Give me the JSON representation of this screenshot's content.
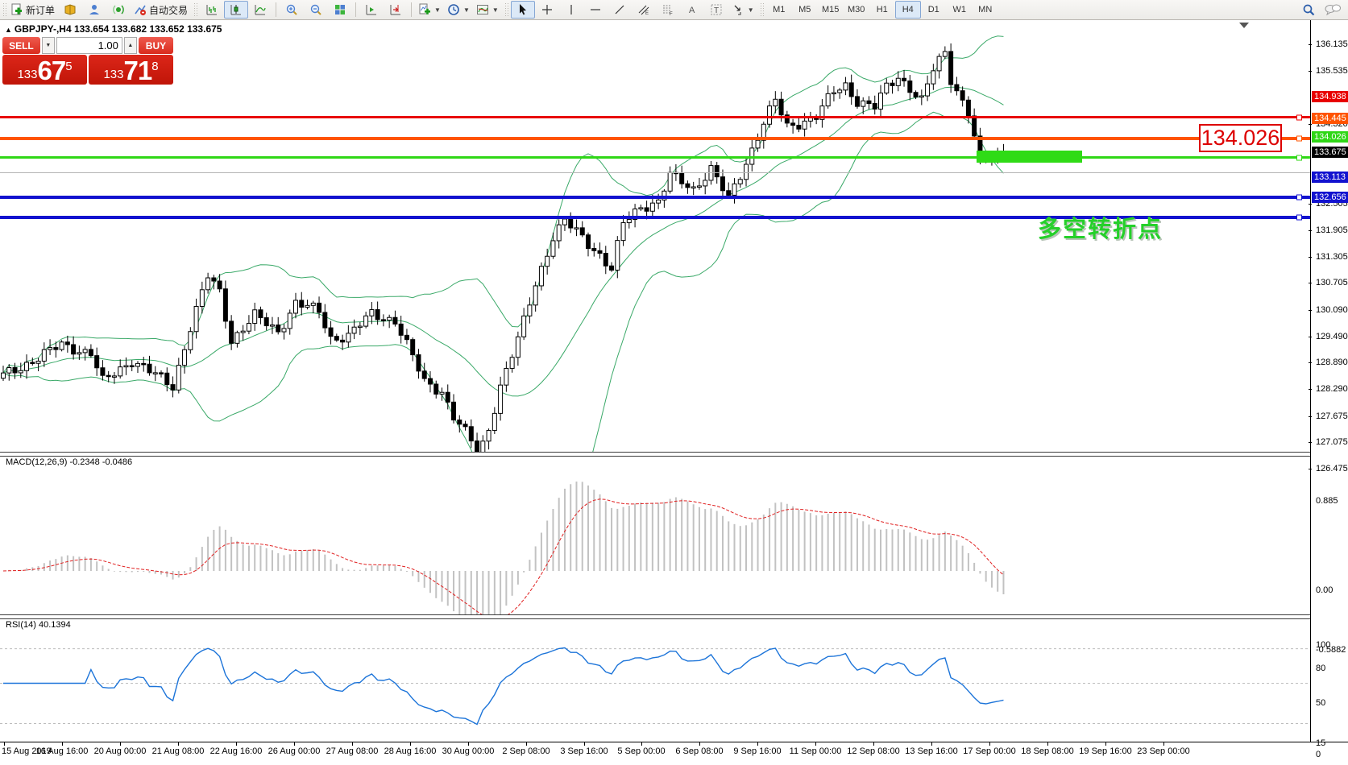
{
  "toolbar": {
    "new_order_label": "新订单",
    "autotrade_label": "自动交易",
    "timeframes": [
      "M1",
      "M5",
      "M15",
      "M30",
      "H1",
      "H4",
      "D1",
      "W1",
      "MN"
    ],
    "active_timeframe": "H4",
    "caret_glyph": "▼"
  },
  "window": {
    "title_toggle_glyph": "▲",
    "chart_title": "GBPJPY-,H4  133.654 133.682 133.652 133.675"
  },
  "one_click": {
    "sell_label": "SELL",
    "buy_label": "BUY",
    "volume": "1.00",
    "spin_down_glyph": "▼",
    "spin_up_glyph": "▲",
    "sell_price": {
      "prefix": "133",
      "big": "67",
      "sup": "5"
    },
    "buy_price": {
      "prefix": "133",
      "big": "71",
      "sup": "8"
    }
  },
  "annotations": {
    "price_box": "134.026",
    "turning_point": "多空转折点"
  },
  "hlines": [
    {
      "price": 134.938,
      "color": "#e80000",
      "thickness": 3,
      "badge": true
    },
    {
      "price": 134.445,
      "color": "#ff5400",
      "thickness": 4,
      "badge": true
    },
    {
      "price": 134.026,
      "color": "#2fd716",
      "thickness": 3,
      "badge": true
    },
    {
      "price": 133.675,
      "color": "#b4b4b4",
      "thickness": 1,
      "badge": false
    },
    {
      "price": 133.113,
      "color": "#1212cf",
      "thickness": 4,
      "badge": true
    },
    {
      "price": 132.656,
      "color": "#1212cf",
      "thickness": 4,
      "badge": true
    }
  ],
  "price_axis": {
    "plain_ticks": [
      136.135,
      135.535,
      134.32,
      132.505,
      131.905,
      131.305,
      130.705,
      130.09,
      129.49,
      128.89,
      128.29,
      127.675,
      127.075,
      126.475
    ],
    "badges": [
      {
        "value": "134.938",
        "color": "#e80000",
        "text": "#ffffff"
      },
      {
        "value": "134.445",
        "color": "#ff5400",
        "text": "#ffffff"
      },
      {
        "value": "134.026",
        "color": "#2fd716",
        "text": "#ffffff"
      },
      {
        "value": "133.675",
        "color": "#000000",
        "text": "#ffffff"
      },
      {
        "value": "133.113",
        "color": "#1212cf",
        "text": "#ffffff"
      },
      {
        "value": "132.656",
        "color": "#1212cf",
        "text": "#ffffff"
      }
    ]
  },
  "macd_pane": {
    "label": "MACD(12,26,9) -0.2348 -0.0486",
    "ticks": [
      0.885,
      0.0,
      -0.5882
    ]
  },
  "rsi_pane": {
    "label": "RSI(14) 40.1394",
    "ticks": [
      100,
      80,
      50,
      15,
      0
    ]
  },
  "time_axis": [
    "15 Aug 2019",
    "16 Aug 16:00",
    "20 Aug 00:00",
    "21 Aug 08:00",
    "22 Aug 16:00",
    "26 Aug 00:00",
    "27 Aug 08:00",
    "28 Aug 16:00",
    "30 Aug 00:00",
    "2 Sep 08:00",
    "3 Sep 16:00",
    "5 Sep 00:00",
    "6 Sep 08:00",
    "9 Sep 16:00",
    "11 Sep 00:00",
    "12 Sep 08:00",
    "13 Sep 16:00",
    "17 Sep 00:00",
    "18 Sep 08:00",
    "19 Sep 16:00",
    "23 Sep 00:00"
  ],
  "chart_data": {
    "type": "candlestick",
    "symbol": "GBPJPY-",
    "timeframe": "H4",
    "ohlc_display": {
      "open": 133.654,
      "high": 133.682,
      "low": 133.652,
      "close": 133.675
    },
    "price_range": [
      126.475,
      136.135
    ],
    "bars": 172,
    "close_anchors": [
      [
        0,
        128.6
      ],
      [
        6,
        129.0
      ],
      [
        10,
        129.3
      ],
      [
        15,
        129.1
      ],
      [
        17,
        128.45
      ],
      [
        22,
        128.95
      ],
      [
        29,
        128.35
      ],
      [
        32,
        129.7
      ],
      [
        35,
        130.85
      ],
      [
        37,
        130.5
      ],
      [
        39,
        129.4
      ],
      [
        43,
        129.95
      ],
      [
        47,
        129.6
      ],
      [
        50,
        130.25
      ],
      [
        54,
        130.05
      ],
      [
        56,
        129.45
      ],
      [
        59,
        129.5
      ],
      [
        63,
        130.0
      ],
      [
        67,
        129.85
      ],
      [
        72,
        128.45
      ],
      [
        75,
        128.25
      ],
      [
        77,
        127.65
      ],
      [
        80,
        127.1
      ],
      [
        81,
        126.7
      ],
      [
        83,
        127.4
      ],
      [
        85,
        128.35
      ],
      [
        88,
        129.4
      ],
      [
        91,
        130.7
      ],
      [
        94,
        131.75
      ],
      [
        96,
        132.1
      ],
      [
        99,
        131.75
      ],
      [
        102,
        131.35
      ],
      [
        104,
        131.0
      ],
      [
        106,
        132.05
      ],
      [
        109,
        132.45
      ],
      [
        112,
        132.55
      ],
      [
        114,
        133.15
      ],
      [
        118,
        132.85
      ],
      [
        121,
        133.3
      ],
      [
        124,
        132.6
      ],
      [
        127,
        133.45
      ],
      [
        130,
        134.35
      ],
      [
        132,
        134.85
      ],
      [
        134,
        134.25
      ],
      [
        137,
        134.4
      ],
      [
        139,
        134.5
      ],
      [
        142,
        135.05
      ],
      [
        144,
        135.2
      ],
      [
        146,
        134.85
      ],
      [
        149,
        134.7
      ],
      [
        151,
        135.15
      ],
      [
        153,
        135.4
      ],
      [
        155,
        135.15
      ],
      [
        157,
        134.85
      ],
      [
        159,
        135.55
      ],
      [
        161,
        135.95
      ],
      [
        162,
        135.35
      ],
      [
        164,
        134.85
      ],
      [
        165,
        134.6
      ],
      [
        167,
        133.45
      ],
      [
        169,
        133.6
      ],
      [
        170,
        133.55
      ],
      [
        171,
        133.675
      ]
    ],
    "indicators": {
      "bollinger": {
        "period": 20,
        "deviation": 2,
        "color": "#3aa968"
      },
      "macd": {
        "fast": 12,
        "slow": 26,
        "signal": 9,
        "value": -0.2348,
        "signal_value": -0.0486,
        "histogram_color": "#c2c2c2",
        "signal_color": "#e02020",
        "range": [
          -0.5882,
          0.885
        ]
      },
      "rsi": {
        "period": 14,
        "value": 40.1394,
        "color": "#1c74d9",
        "levels": [
          80,
          50,
          15
        ]
      }
    },
    "highlight_rect": {
      "bar_start": 167,
      "bar_end": 185,
      "price": 134.026
    }
  }
}
